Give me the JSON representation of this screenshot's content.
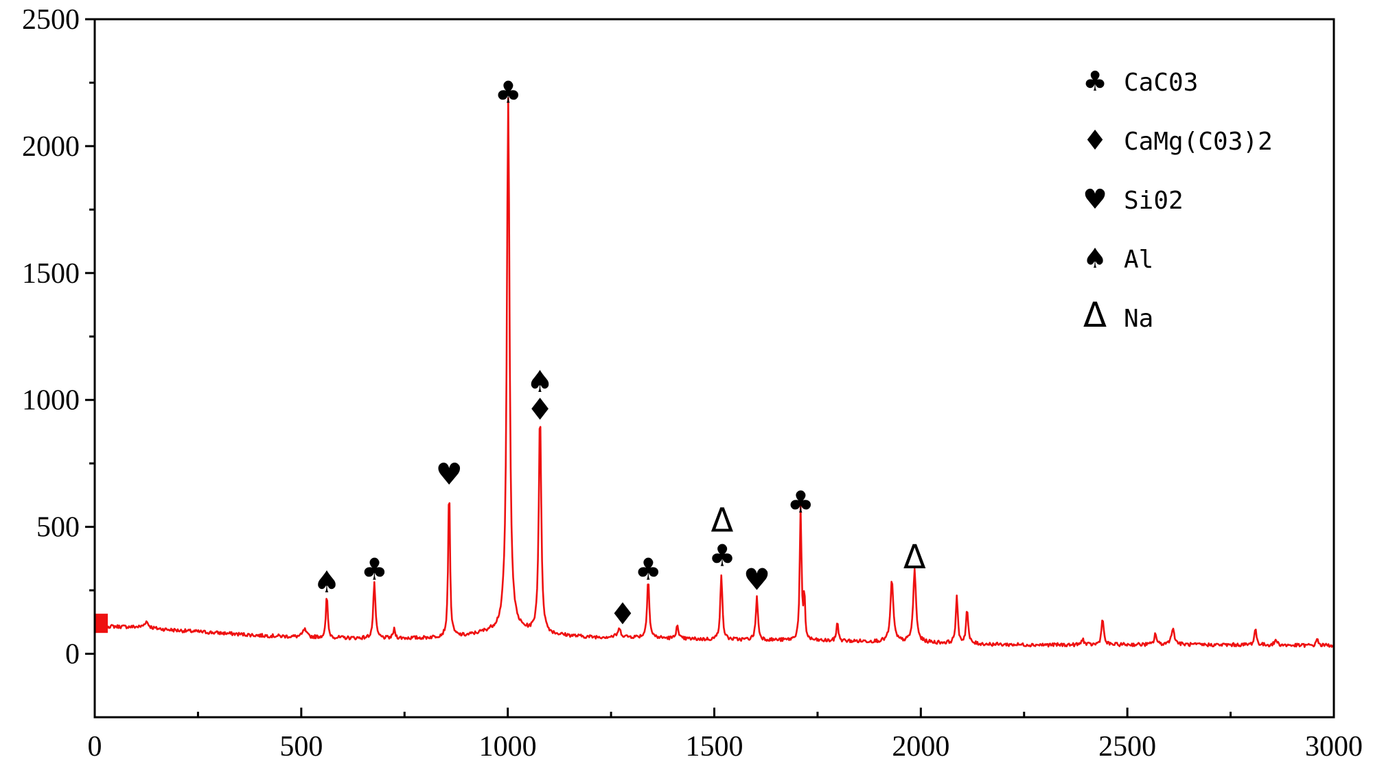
{
  "chart_data": {
    "type": "line",
    "title": "",
    "xlabel": "",
    "ylabel": "",
    "xlim": [
      0,
      3000
    ],
    "ylim": [
      -250,
      2500
    ],
    "grid": false,
    "legend_position": "top-right",
    "x_ticks": [
      0,
      500,
      1000,
      1500,
      2000,
      2500,
      3000
    ],
    "x_tick_labels": [
      "0",
      "500",
      "1000",
      "1500",
      "2000",
      "2500",
      "3000"
    ],
    "y_ticks": [
      0,
      500,
      1000,
      1500,
      2000,
      2500
    ],
    "y_tick_labels": [
      "0",
      "500",
      "1000",
      "1500",
      "2000",
      "2500"
    ],
    "series": [
      {
        "color": "#ee1111",
        "baseline": [
          {
            "x": 0,
            "y": 110
          },
          {
            "x": 100,
            "y": 105
          },
          {
            "x": 200,
            "y": 92
          },
          {
            "x": 300,
            "y": 82
          },
          {
            "x": 400,
            "y": 72
          },
          {
            "x": 500,
            "y": 66
          },
          {
            "x": 600,
            "y": 62
          },
          {
            "x": 700,
            "y": 60
          },
          {
            "x": 800,
            "y": 62
          },
          {
            "x": 900,
            "y": 70
          },
          {
            "x": 950,
            "y": 85
          },
          {
            "x": 1000,
            "y": 95
          },
          {
            "x": 1050,
            "y": 85
          },
          {
            "x": 1100,
            "y": 75
          },
          {
            "x": 1200,
            "y": 65
          },
          {
            "x": 1300,
            "y": 65
          },
          {
            "x": 1400,
            "y": 60
          },
          {
            "x": 1500,
            "y": 55
          },
          {
            "x": 1600,
            "y": 55
          },
          {
            "x": 1700,
            "y": 52
          },
          {
            "x": 1800,
            "y": 50
          },
          {
            "x": 1900,
            "y": 48
          },
          {
            "x": 2000,
            "y": 45
          },
          {
            "x": 2100,
            "y": 40
          },
          {
            "x": 2200,
            "y": 36
          },
          {
            "x": 2300,
            "y": 35
          },
          {
            "x": 2400,
            "y": 35
          },
          {
            "x": 2500,
            "y": 36
          },
          {
            "x": 2600,
            "y": 36
          },
          {
            "x": 2700,
            "y": 35
          },
          {
            "x": 2800,
            "y": 35
          },
          {
            "x": 2900,
            "y": 33
          },
          {
            "x": 3000,
            "y": 33
          }
        ],
        "peaks": [
          {
            "x": 125,
            "y": 25,
            "w": 6
          },
          {
            "x": 508,
            "y": 30,
            "w": 5
          },
          {
            "x": 562,
            "y": 170,
            "w": 2.5
          },
          {
            "x": 677,
            "y": 225,
            "w": 3
          },
          {
            "x": 725,
            "y": 35,
            "w": 3
          },
          {
            "x": 858,
            "y": 610,
            "w": 2.5
          },
          {
            "x": 1001,
            "y": 2090,
            "w": 4
          },
          {
            "x": 1078,
            "y": 870,
            "w": 3.5
          },
          {
            "x": 1270,
            "y": 30,
            "w": 5
          },
          {
            "x": 1340,
            "y": 240,
            "w": 3
          },
          {
            "x": 1410,
            "y": 60,
            "w": 2.5
          },
          {
            "x": 1517,
            "y": 260,
            "w": 3
          },
          {
            "x": 1603,
            "y": 170,
            "w": 3
          },
          {
            "x": 1709,
            "y": 520,
            "w": 2.5
          },
          {
            "x": 1718,
            "y": 180,
            "w": 2
          },
          {
            "x": 1798,
            "y": 80,
            "w": 2.5
          },
          {
            "x": 1930,
            "y": 245,
            "w": 4
          },
          {
            "x": 1985,
            "y": 285,
            "w": 4
          },
          {
            "x": 2087,
            "y": 180,
            "w": 3
          },
          {
            "x": 2112,
            "y": 135,
            "w": 3
          },
          {
            "x": 2392,
            "y": 25,
            "w": 3
          },
          {
            "x": 2440,
            "y": 110,
            "w": 3
          },
          {
            "x": 2568,
            "y": 45,
            "w": 3
          },
          {
            "x": 2610,
            "y": 60,
            "w": 5
          },
          {
            "x": 2810,
            "y": 65,
            "w": 3
          },
          {
            "x": 2860,
            "y": 20,
            "w": 4
          },
          {
            "x": 2960,
            "y": 35,
            "w": 2
          }
        ]
      }
    ],
    "start_marker": {
      "x": 15,
      "y": 120,
      "color": "#ee1111"
    },
    "legend": [
      {
        "symbol": "club",
        "glyph": "♣",
        "label": "CaC03"
      },
      {
        "symbol": "diamond",
        "glyph": "♦",
        "label": "CaMg(C03)2"
      },
      {
        "symbol": "heart",
        "glyph": "♥",
        "label": "Si02"
      },
      {
        "symbol": "spade",
        "glyph": "♠",
        "label": "Al"
      },
      {
        "symbol": "triangle-open",
        "glyph": "Δ",
        "label": "Na"
      }
    ],
    "annotations": [
      {
        "symbol": "spade",
        "glyph": "♠",
        "x": 562,
        "y": 285
      },
      {
        "symbol": "club",
        "glyph": "♣",
        "x": 677,
        "y": 335
      },
      {
        "symbol": "heart",
        "glyph": "♥",
        "x": 858,
        "y": 710
      },
      {
        "symbol": "club",
        "glyph": "♣",
        "x": 1001,
        "y": 2215
      },
      {
        "symbol": "spade",
        "glyph": "♠",
        "x": 1078,
        "y": 1075
      },
      {
        "symbol": "diamond",
        "glyph": "♦",
        "x": 1078,
        "y": 965
      },
      {
        "symbol": "diamond",
        "glyph": "♦",
        "x": 1278,
        "y": 160
      },
      {
        "symbol": "club",
        "glyph": "♣",
        "x": 1340,
        "y": 335
      },
      {
        "symbol": "triangle-open",
        "glyph": "Δ",
        "x": 1519,
        "y": 525
      },
      {
        "symbol": "club",
        "glyph": "♣",
        "x": 1519,
        "y": 390
      },
      {
        "symbol": "heart",
        "glyph": "♥",
        "x": 1603,
        "y": 295
      },
      {
        "symbol": "club",
        "glyph": "♣",
        "x": 1709,
        "y": 600
      },
      {
        "symbol": "triangle-open",
        "glyph": "Δ",
        "x": 1985,
        "y": 380
      }
    ]
  }
}
